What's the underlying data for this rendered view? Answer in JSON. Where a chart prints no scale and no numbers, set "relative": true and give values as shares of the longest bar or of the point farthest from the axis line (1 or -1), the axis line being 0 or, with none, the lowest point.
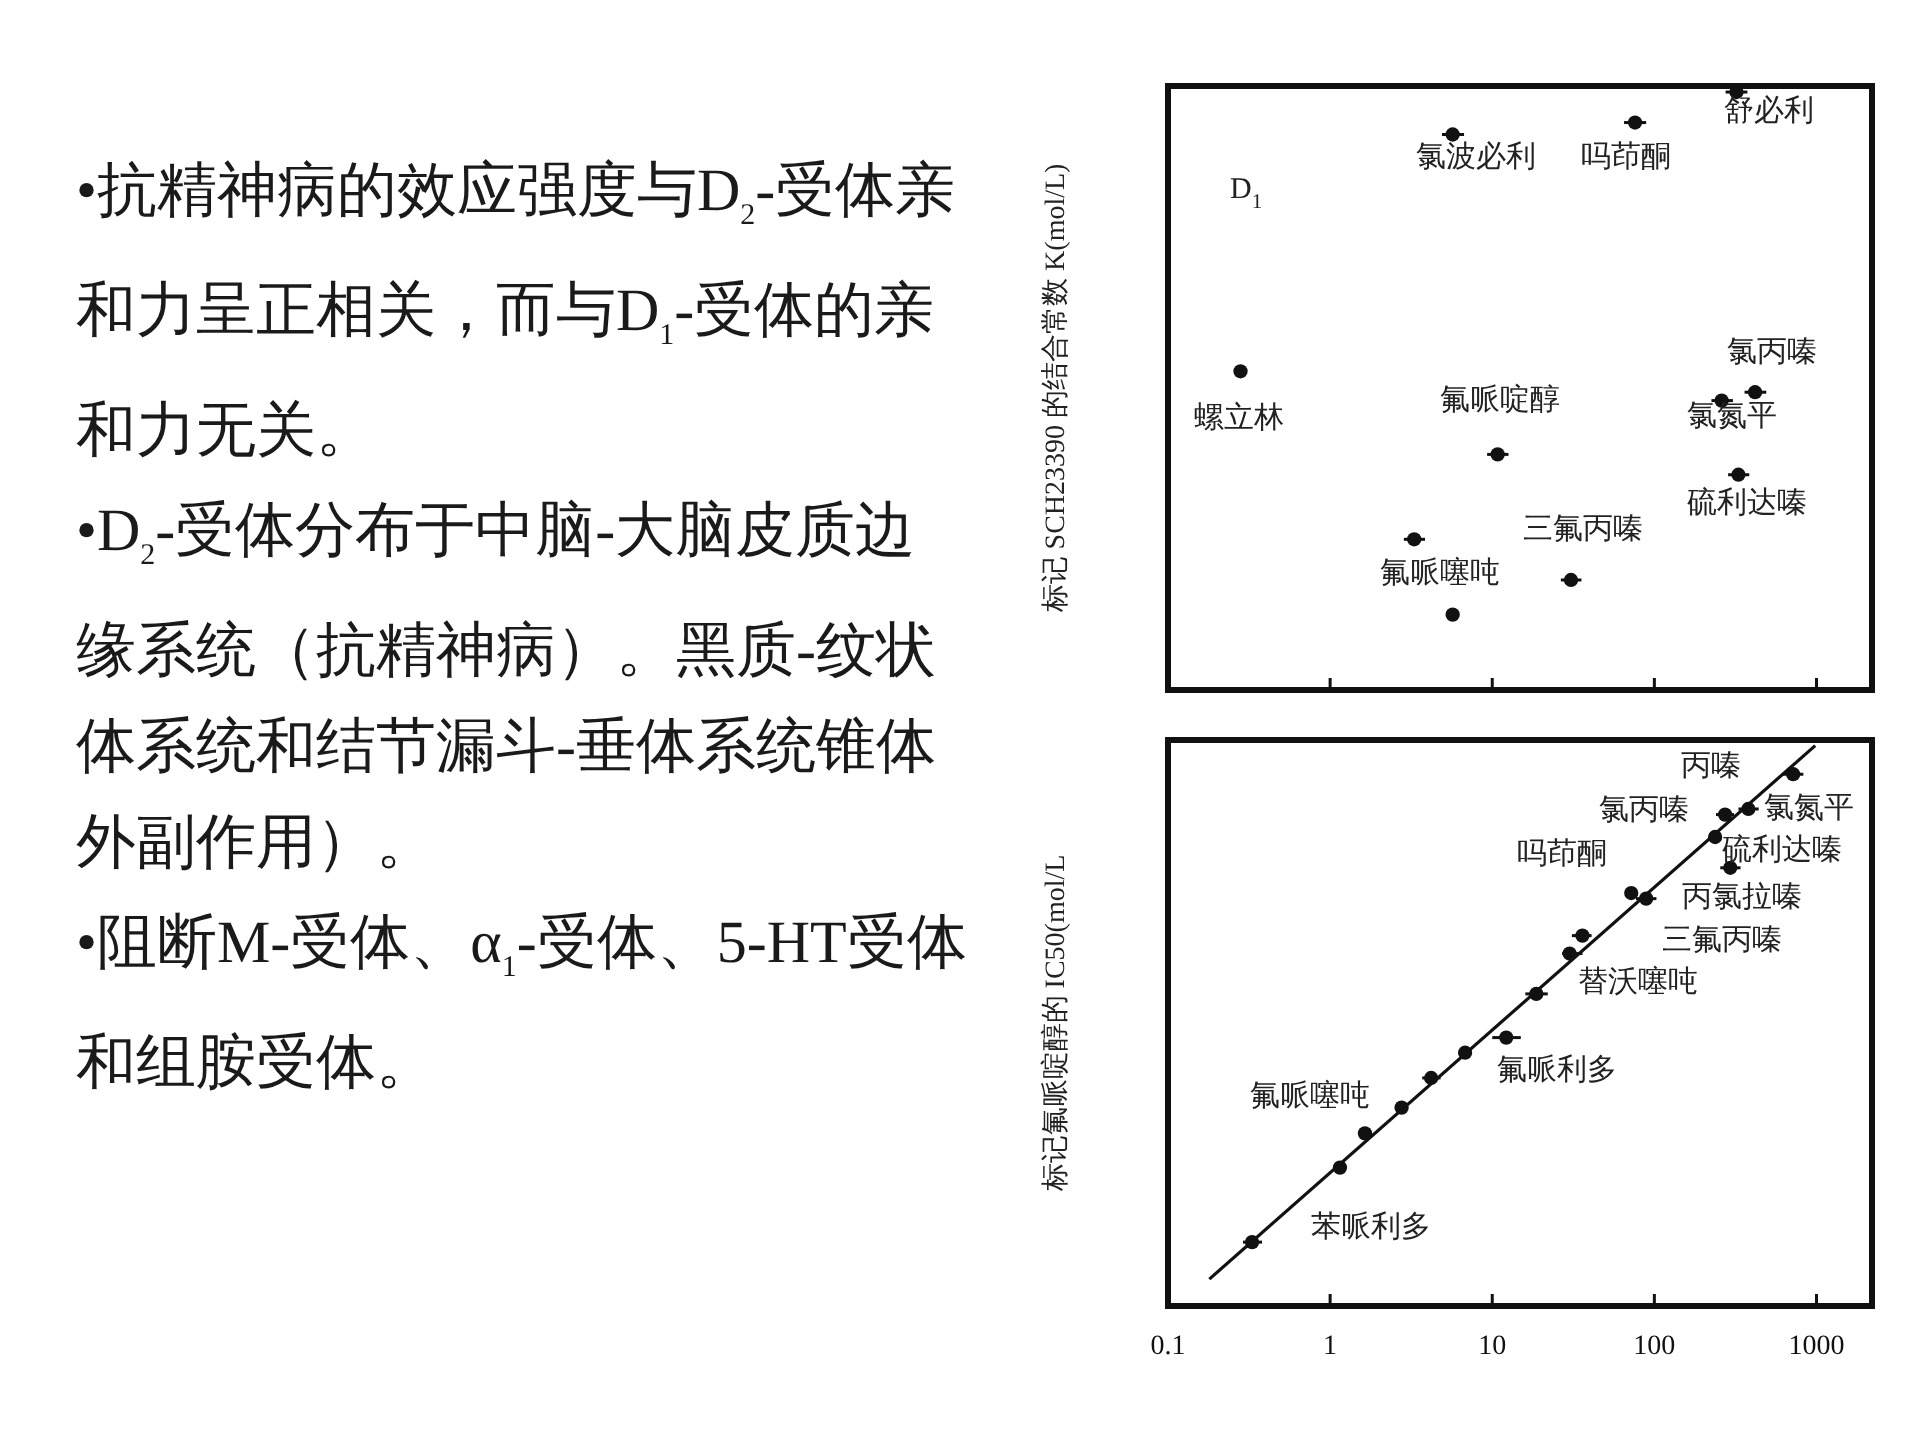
{
  "chart_data": [
    {
      "type": "other",
      "annotations": [
        "•抗精神病的效应强度与D$_{2}$-受体亲和力呈正相关，而与D$_{1}$-受体的亲和力无关。",
        "•D$_{2}$-受体分布于中脑-大脑皮质边缘系统（抗精神病）。黑质-纹状体系统和结节漏斗-垂体系统锥体外副作用）。",
        "•阻断M-受体、α$_{1}$-受体、5-HT受体和组胺受体。"
      ]
    },
    {
      "type": "scatter",
      "relative": true,
      "ylabel": "标记 SCH23390 的结合常数 K(mol/L)",
      "log": "x",
      "xlim": [
        0.1,
        2200
      ],
      "xticks": [
        {
          "value": 0.1,
          "label": null
        },
        {
          "value": 1,
          "label": null
        },
        {
          "value": 10,
          "label": null
        },
        {
          "value": 100,
          "label": null
        },
        {
          "value": 1000,
          "label": null
        }
      ],
      "tick_labels": false,
      "marker": "circle",
      "series": [
        {
          "type": "scatter",
          "color": "#111111",
          "x": [
            0.28,
            5.7,
            76,
            321,
            418,
            260,
            10.8,
            330,
            3.3,
            30.6,
            5.7
          ],
          "values": [
            0.533,
            0.929,
            0.949,
            1,
            0.498,
            0.484,
            0.394,
            0.36,
            0.252,
            0.184,
            0.126
          ],
          "xerrors": [
            null,
            [
              4.9,
              6.7
            ],
            [
              65,
              89
            ],
            [
              275,
              375
            ],
            [
              360,
              490
            ],
            [
              225,
              305
            ],
            [
              9.3,
              12.6
            ],
            [
              285,
              385
            ],
            [
              2.85,
              3.85
            ],
            [
              26.5,
              35.5
            ],
            null
          ]
        }
      ],
      "annotations": [
        "D$_{1}$",
        "舒必利",
        "氯波必利",
        "吗茚酮",
        "氯丙嗪",
        "螺立林",
        "氟哌啶醇",
        "氯氮平",
        "硫利达嗪",
        "三氟丙嗪",
        "氟哌噻吨"
      ]
    },
    {
      "type": "scatter",
      "relative": true,
      "ylabel": "标记氟哌啶醇的 IC50(mol/L",
      "log": "x",
      "xlim": [
        0.1,
        2200
      ],
      "xticks": [
        0.1,
        1,
        10,
        100,
        1000
      ],
      "tick_labels": "x",
      "marker": "circle",
      "series": [
        {
          "type": "scatter",
          "color": "#111111",
          "x": [
            0.33,
            1.15,
            1.64,
            2.76,
            4.2,
            6.8,
            12.2,
            18.7,
            30,
            36,
            72,
            89,
            237,
            273,
            294,
            380,
            718
          ],
          "values": [
            0.114,
            0.247,
            0.308,
            0.354,
            0.407,
            0.452,
            0.479,
            0.557,
            0.629,
            0.661,
            0.737,
            0.727,
            0.837,
            0.877,
            0.782,
            0.887,
            0.949
          ],
          "xerrors": [
            [
              0.29,
              0.38
            ],
            null,
            null,
            null,
            [
              3.7,
              4.8
            ],
            null,
            [
              10,
              15
            ],
            [
              16,
              22
            ],
            [
              27,
              36
            ],
            [
              31,
              41
            ],
            null,
            [
              77,
              103
            ],
            null,
            [
              240,
              310
            ],
            [
              255,
              340
            ],
            [
              330,
              440
            ],
            [
              620,
              830
            ]
          ]
        },
        {
          "type": "line",
          "color": "#111111",
          "marker": "none",
          "x": [
            0.18,
            982
          ],
          "values": [
            0.048,
            1
          ]
        }
      ],
      "annotations": [
        "丙嗪",
        "氯丙嗪",
        "氯氮平",
        "吗茚酮",
        "硫利达嗪",
        "丙氯拉嗪",
        "三氟丙嗪",
        "替沃噻吨",
        "氟哌利多",
        "氟哌噻吨",
        "苯哌利多"
      ]
    }
  ]
}
